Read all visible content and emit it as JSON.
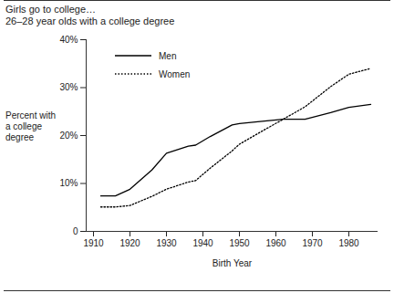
{
  "chart_data": {
    "type": "line",
    "title": "Girls go to college…",
    "subtitle": "26–28 year olds with a college degree",
    "x_label": "Birth Year",
    "y_label": "Percent with a college degree",
    "x": [
      1912,
      1916,
      1920,
      1926,
      1930,
      1936,
      1938,
      1942,
      1948,
      1950,
      1955,
      1962,
      1968,
      1975,
      1980,
      1986
    ],
    "series": [
      {
        "name": "Men",
        "color": "#000000",
        "line_style": "solid",
        "values": [
          7.4,
          7.4,
          8.8,
          12.8,
          16.3,
          17.8,
          18.0,
          19.8,
          22.2,
          22.5,
          22.9,
          23.4,
          23.4,
          24.8,
          25.9,
          26.5
        ]
      },
      {
        "name": "Women",
        "color": "#000000",
        "line_style": "dotted",
        "values": [
          5.1,
          5.1,
          5.4,
          7.3,
          8.8,
          10.3,
          10.6,
          13.2,
          16.8,
          18.2,
          20.4,
          23.4,
          26.0,
          30.2,
          32.8,
          34.0
        ]
      }
    ],
    "xlim": [
      1908,
      1988
    ],
    "xticks": [
      1910,
      1920,
      1930,
      1940,
      1950,
      1960,
      1970,
      1980
    ],
    "ylim": [
      0,
      40
    ],
    "yticks": [
      0,
      {
        "value": 10,
        "label": "10%"
      },
      {
        "value": 20,
        "label": "20%"
      },
      {
        "value": 30,
        "label": "30%"
      },
      {
        "value": 40,
        "label": "40%"
      }
    ],
    "grid": false,
    "legend": "top-left"
  }
}
